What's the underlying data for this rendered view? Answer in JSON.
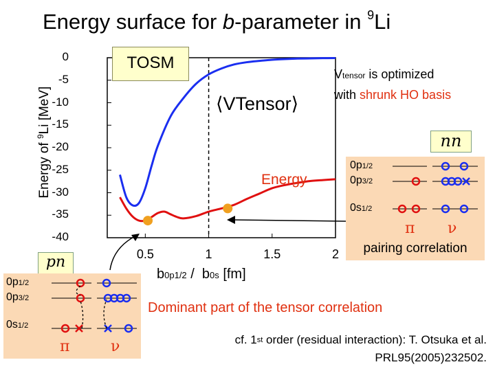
{
  "title": {
    "prefix": "Energy surface for ",
    "italic": "b",
    "middle": "-parameter in ",
    "sup": "9",
    "suffix": "Li"
  },
  "chart_data": {
    "type": "line",
    "xlabel": "b0p1/2 / b0s [fm]",
    "ylabel": "Energy of 9Li [MeV]",
    "xlim": [
      0.2,
      2.0
    ],
    "ylim": [
      -40,
      0
    ],
    "xticks": [
      "0.5",
      "1",
      "1.5",
      "2"
    ],
    "yticks": [
      "0",
      "-5",
      "-10",
      "-15",
      "-20",
      "-25",
      "-30",
      "-35",
      "-40"
    ],
    "series": [
      {
        "name": "⟨VTensor⟩",
        "color": "#1a2ef0",
        "x": [
          0.3,
          0.35,
          0.4,
          0.45,
          0.5,
          0.55,
          0.6,
          0.7,
          0.8,
          0.9,
          1.0,
          1.1,
          1.2,
          1.3,
          1.4,
          1.5,
          1.6,
          1.7,
          1.8,
          1.9,
          2.0
        ],
        "y": [
          -26,
          -31,
          -32.8,
          -32.3,
          -29,
          -24,
          -19.5,
          -13,
          -9,
          -5.8,
          -3.7,
          -2.4,
          -1.5,
          -1.0,
          -0.7,
          -0.45,
          -0.3,
          -0.2,
          -0.15,
          -0.1,
          -0.08
        ]
      },
      {
        "name": "Energy",
        "color": "#e01010",
        "x": [
          0.3,
          0.35,
          0.4,
          0.45,
          0.5,
          0.55,
          0.6,
          0.65,
          0.7,
          0.75,
          0.8,
          0.9,
          1.0,
          1.1,
          1.2,
          1.3,
          1.4,
          1.5,
          1.6,
          1.7,
          1.8,
          1.9,
          2.0
        ],
        "y": [
          -31,
          -33.5,
          -35.3,
          -36.2,
          -36.2,
          -35.4,
          -34.5,
          -34.2,
          -34.8,
          -35.4,
          -35.7,
          -35.2,
          -34.2,
          -33.5,
          -32.7,
          -31.4,
          -30.2,
          -29.0,
          -28.3,
          -27.8,
          -27.4,
          -27.2,
          -27.0
        ]
      }
    ],
    "markers": [
      {
        "x": 0.52,
        "y": -36.2,
        "color": "#f0a020"
      },
      {
        "x": 1.15,
        "y": -33.5,
        "color": "#f0a020"
      }
    ],
    "vline": {
      "x": 1.0,
      "style": "dashed"
    },
    "series_labels": {
      "vtensor": "⟨VTensor⟩",
      "energy": "Energy"
    }
  },
  "tosm_label": "TOSM",
  "vtensor_note": {
    "line1_main": "V",
    "line1_sub": "tensor",
    "line1_rest": " is optimized",
    "line2_pre": "with ",
    "line2_red": "shrunk HO basis"
  },
  "nn_label": "nn",
  "pn_label": "pn",
  "pairing_label": "pairing correlation",
  "dominant_label": "Dominant part of the tensor correlation",
  "citation": {
    "line1_a": "cf. 1",
    "line1_sup": "st",
    "line1_b": " order (residual interaction): T. Otsuka et al.",
    "line2": "PRL95(2005)232502."
  },
  "levels": {
    "p12": "0p",
    "p12_sub": "1/2",
    "p32": "0p",
    "p32_sub": "3/2",
    "s12": "0s",
    "s12_sub": "1/2"
  },
  "greek": {
    "pi": "π",
    "nu": "ν"
  },
  "colors": {
    "red": "#e01010",
    "blue": "#1a2ef0",
    "orange": "#f0a020",
    "box": "#fbd9b5",
    "tag": "#ffffcc"
  }
}
